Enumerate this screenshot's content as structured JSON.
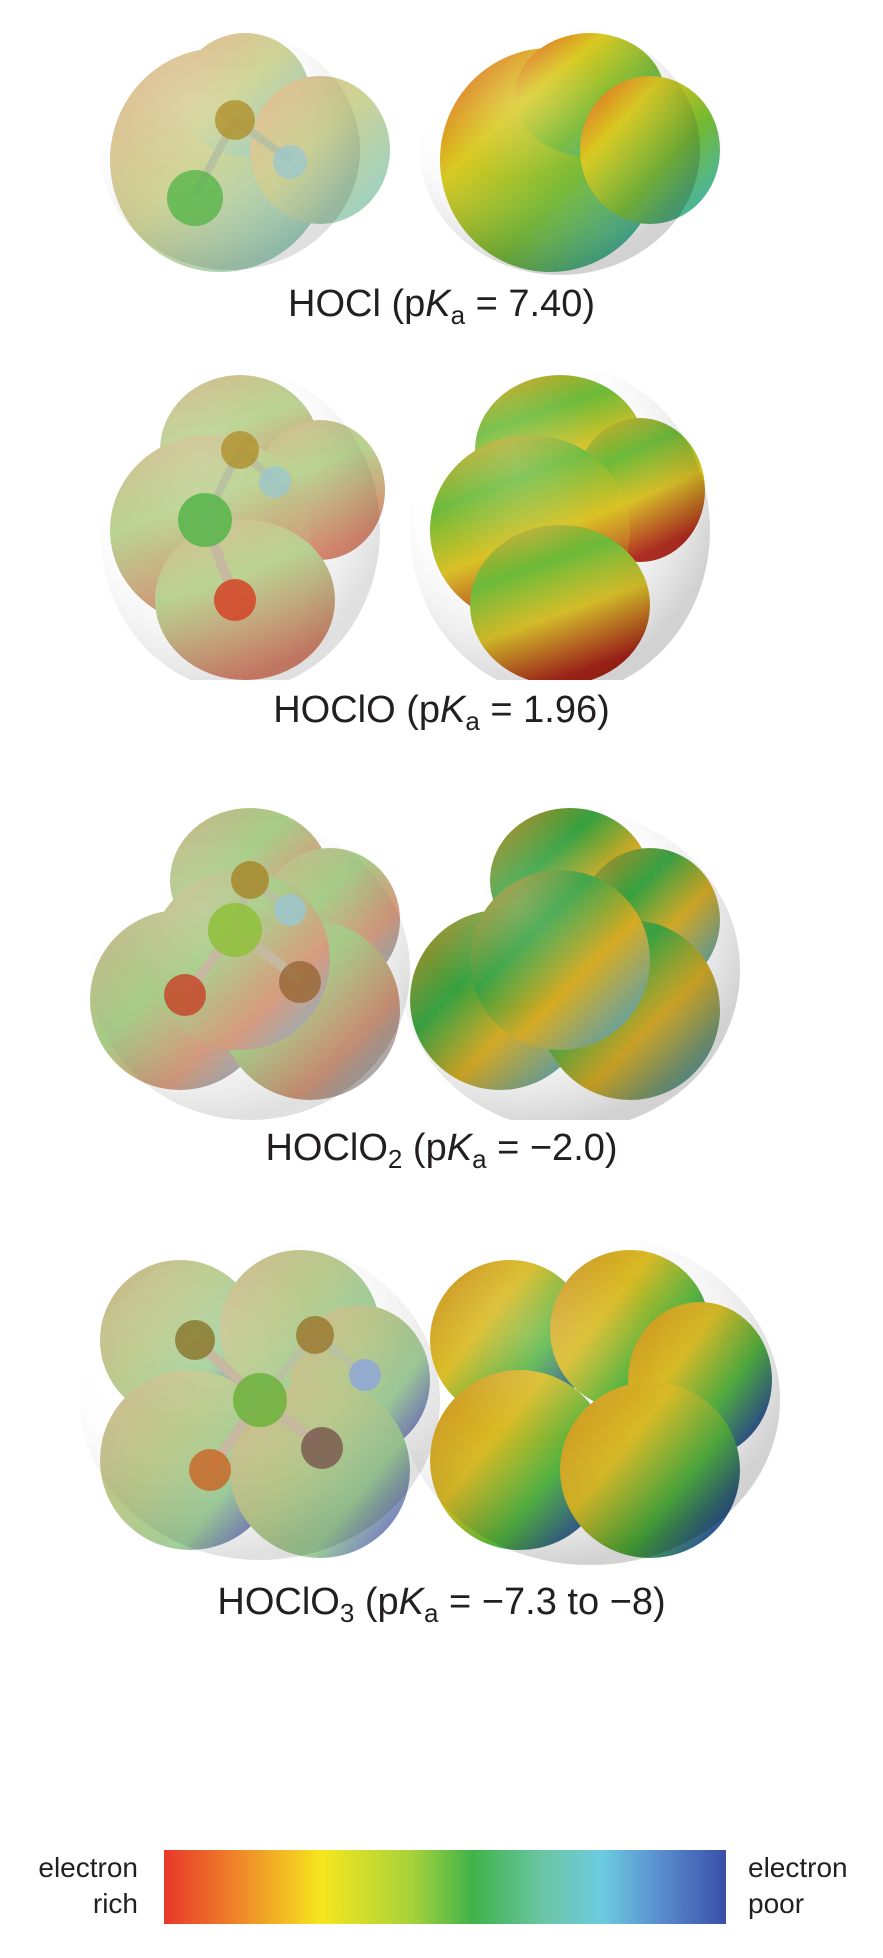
{
  "molecules": [
    {
      "formula": "HOCl",
      "sub": "",
      "pre": " (p",
      "K": "K",
      "a": "a",
      "post": " = 7.40)"
    },
    {
      "formula": "HOClO",
      "sub": "",
      "pre": " (p",
      "K": "K",
      "a": "a",
      "post": " = 1.96)"
    },
    {
      "formula": "HOClO",
      "sub": "2",
      "pre": " (p",
      "K": "K",
      "a": "a",
      "post": " = −2.0)"
    },
    {
      "formula": "HOClO",
      "sub": "3",
      "pre": " (p",
      "K": "K",
      "a": "a",
      "post": " = −7.3 to −8)"
    }
  ],
  "legend": {
    "left_line1": "electron",
    "left_line2": "rich",
    "right_line1": "electron",
    "right_line2": "poor"
  },
  "colors": {
    "electron_rich": "#e8372a",
    "neutral": "#3fb34a",
    "electron_poor": "#3a4fa8"
  }
}
